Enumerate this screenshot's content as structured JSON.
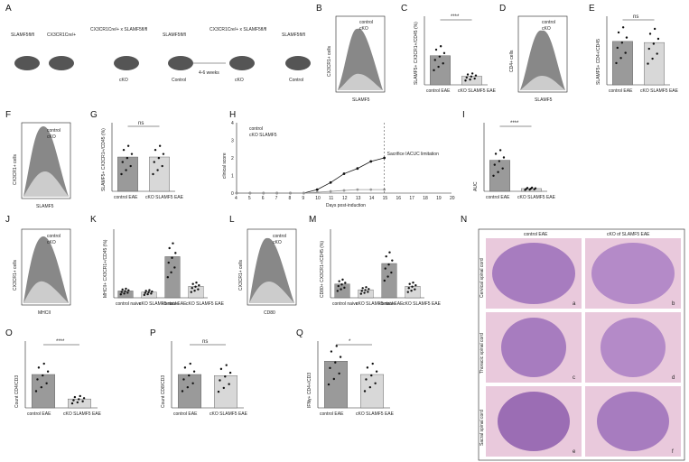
{
  "panels": {
    "A": {
      "letter": "A",
      "mouse_labels": [
        "SLAMF5fl/fl",
        "CX3CR1Cre/+",
        "CX3CR1Cre/+ x SLAMF5fl/fl",
        "SLAMF5fl/fl",
        "CX3CR1Cre/+ x SLAMF5fl/fl",
        "SLAMF5fl/fl"
      ],
      "row2": [
        "cKO",
        "Control",
        "cKO",
        "Control"
      ],
      "arrow": "4-6 weeks"
    },
    "B": {
      "letter": "B",
      "ylabel": "CX3CR1+ cells",
      "xlabel": "SLAMF5",
      "legend": [
        "control",
        "cKO"
      ]
    },
    "C": {
      "letter": "C",
      "ylabel": "SLAMF5+ CX3CR1+/CD45 (%)",
      "cats": [
        "control EAE",
        "cKO SLAMF5 EAE"
      ],
      "sig": "****"
    },
    "D": {
      "letter": "D",
      "ylabel": "CD4+ cells",
      "xlabel": "SLAMF5",
      "legend": [
        "control",
        "cKO"
      ]
    },
    "E": {
      "letter": "E",
      "ylabel": "SLAMF5+ CD4+/CD45",
      "cats": [
        "control EAE",
        "cKO SLAMF5 EAE"
      ],
      "sig": "ns"
    },
    "F": {
      "letter": "F",
      "ylabel": "CX3CR1+ cells",
      "xlabel": "SLAMF5",
      "legend": [
        "control",
        "cKO"
      ]
    },
    "G": {
      "letter": "G",
      "ylabel": "SLAMF5+ CX3CR1+/CD45 (%)",
      "cats": [
        "control EAE",
        "cKO SLAMF5 EAE"
      ],
      "sig": "ns"
    },
    "H": {
      "letter": "H",
      "ylabel": "clinical score",
      "xlabel": "Days post-induction",
      "legend": [
        "control",
        "cKO SLAMF5"
      ],
      "note": "Sacrifice IACUC limitation"
    },
    "I": {
      "letter": "I",
      "ylabel": "AUC",
      "cats": [
        "control EAE",
        "cKO SLAMF5 EAE"
      ],
      "sig": "****"
    },
    "J": {
      "letter": "J",
      "ylabel": "CX3CR1+ cells",
      "xlabel": "MHCII",
      "legend": [
        "control",
        "cKO"
      ]
    },
    "K": {
      "letter": "K",
      "ylabel": "MHCII+ CX3CR1+/CD45 (%)",
      "cats": [
        "control naive",
        "cKO SLAMF5 naive",
        "control EAE",
        "cKO SLAMF5 EAE"
      ],
      "sig": [
        "ns",
        "****",
        "****",
        "ns"
      ]
    },
    "L": {
      "letter": "L",
      "ylabel": "CX3CR1+ cells",
      "xlabel": "CD80",
      "legend": [
        "control",
        "cKO"
      ]
    },
    "M": {
      "letter": "M",
      "ylabel": "CD80+ CX3CR1+/CD45 (%)",
      "cats": [
        "control naive",
        "cKO SLAMF5 naive",
        "control EAE",
        "cKO SLAMF5 EAE"
      ],
      "sig": [
        "ns",
        "****",
        "****",
        "ns"
      ]
    },
    "N": {
      "letter": "N",
      "cols": [
        "control EAE",
        "cKO of SLAMF5 EAE"
      ],
      "rows": [
        "Cervical spinal cord",
        "Thoracic spinal cord",
        "Sacral spinal cord"
      ],
      "tags": [
        "a",
        "b",
        "c",
        "d",
        "e",
        "f"
      ]
    },
    "O": {
      "letter": "O",
      "ylabel": "Count CD4/CD3",
      "cats": [
        "control EAE",
        "cKO SLAMF5 EAE"
      ],
      "sig": "****"
    },
    "P": {
      "letter": "P",
      "ylabel": "Count CD8/CD3",
      "cats": [
        "control EAE",
        "cKO SLAMF5 EAE"
      ],
      "sig": "ns"
    },
    "Q": {
      "letter": "Q",
      "ylabel": "IFNγ+ CD4+/CD3",
      "cats": [
        "control EAE",
        "cKO SLAMF5 EAE"
      ],
      "sig": "*"
    }
  },
  "chart_data": [
    {
      "type": "bar",
      "panel": "C",
      "categories": [
        "control EAE",
        "cKO SLAMF5 EAE"
      ],
      "values": [
        1.7,
        0.5
      ],
      "ylim": [
        0,
        4
      ]
    },
    {
      "type": "bar",
      "panel": "E",
      "categories": [
        "control EAE",
        "cKO SLAMF5 EAE"
      ],
      "values": [
        38,
        37
      ],
      "ylim": [
        0,
        60
      ]
    },
    {
      "type": "bar",
      "panel": "G",
      "categories": [
        "control EAE",
        "cKO SLAMF5 EAE"
      ],
      "values": [
        20,
        20
      ],
      "ylim": [
        0,
        40
      ]
    },
    {
      "type": "line",
      "panel": "H",
      "x": [
        4,
        5,
        6,
        7,
        8,
        9,
        10,
        11,
        12,
        13,
        14,
        15
      ],
      "series": [
        {
          "name": "control",
          "values": [
            0,
            0,
            0,
            0,
            0,
            0,
            0.2,
            0.6,
            1.1,
            1.4,
            1.8,
            2.0
          ]
        },
        {
          "name": "cKO SLAMF5",
          "values": [
            0,
            0,
            0,
            0,
            0,
            0,
            0.05,
            0.1,
            0.15,
            0.2,
            0.2,
            0.2
          ]
        }
      ],
      "xlim": [
        4,
        20
      ],
      "ylim": [
        0,
        4
      ]
    },
    {
      "type": "bar",
      "panel": "I",
      "categories": [
        "control EAE",
        "cKO SLAMF5 EAE"
      ],
      "values": [
        6.8,
        0.6
      ],
      "ylim": [
        0,
        15
      ]
    },
    {
      "type": "bar",
      "panel": "K",
      "categories": [
        "control naive",
        "cKO SLAMF5 naive",
        "control EAE",
        "cKO SLAMF5 EAE"
      ],
      "values": [
        6,
        5,
        36,
        10
      ],
      "ylim": [
        0,
        60
      ]
    },
    {
      "type": "bar",
      "panel": "M",
      "categories": [
        "control naive",
        "cKO SLAMF5 naive",
        "control EAE",
        "cKO SLAMF5 EAE"
      ],
      "values": [
        12,
        7,
        30,
        10
      ],
      "ylim": [
        0,
        60
      ]
    },
    {
      "type": "bar",
      "panel": "O",
      "categories": [
        "control EAE",
        "cKO SLAMF5 EAE"
      ],
      "values": [
        15000,
        4000
      ],
      "ylim": [
        0,
        30000
      ]
    },
    {
      "type": "bar",
      "panel": "P",
      "categories": [
        "control EAE",
        "cKO SLAMF5 EAE"
      ],
      "values": [
        3000,
        2900
      ],
      "ylim": [
        0,
        6000
      ]
    },
    {
      "type": "bar",
      "panel": "Q",
      "categories": [
        "control EAE",
        "cKO SLAMF5 EAE"
      ],
      "values": [
        10.5,
        7.5
      ],
      "ylim": [
        0,
        15
      ]
    }
  ]
}
